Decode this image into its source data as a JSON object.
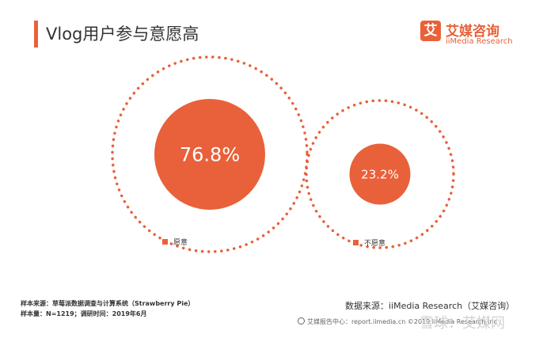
{
  "header": {
    "title": "Vlog用户参与意愿高",
    "logo_mark": "艾",
    "logo_cn": "艾媒咨询",
    "logo_en": "iiMedia Research"
  },
  "colors": {
    "accent": "#e8613a",
    "text": "#333333"
  },
  "chart_data": {
    "type": "pie",
    "title": "",
    "unit": "%",
    "categories": [
      "愿意",
      "不愿意"
    ],
    "values": [
      76.8,
      23.2
    ],
    "value_labels": [
      "76.8%",
      "23.2%"
    ],
    "legend": "bottom"
  },
  "footer": {
    "sample_source": "样本来源：草莓派数据调查与计算系统（Strawberry Pie）",
    "sample_size": "样本量：N=1219；调研时间：2019年6月",
    "data_source": "数据来源：iiMedia Research（艾媒咨询）",
    "website": "艾媒报告中心：report.iimedia.cn ©2019 iiMedia Research Inc",
    "watermark": "雪球：艾媒网"
  }
}
